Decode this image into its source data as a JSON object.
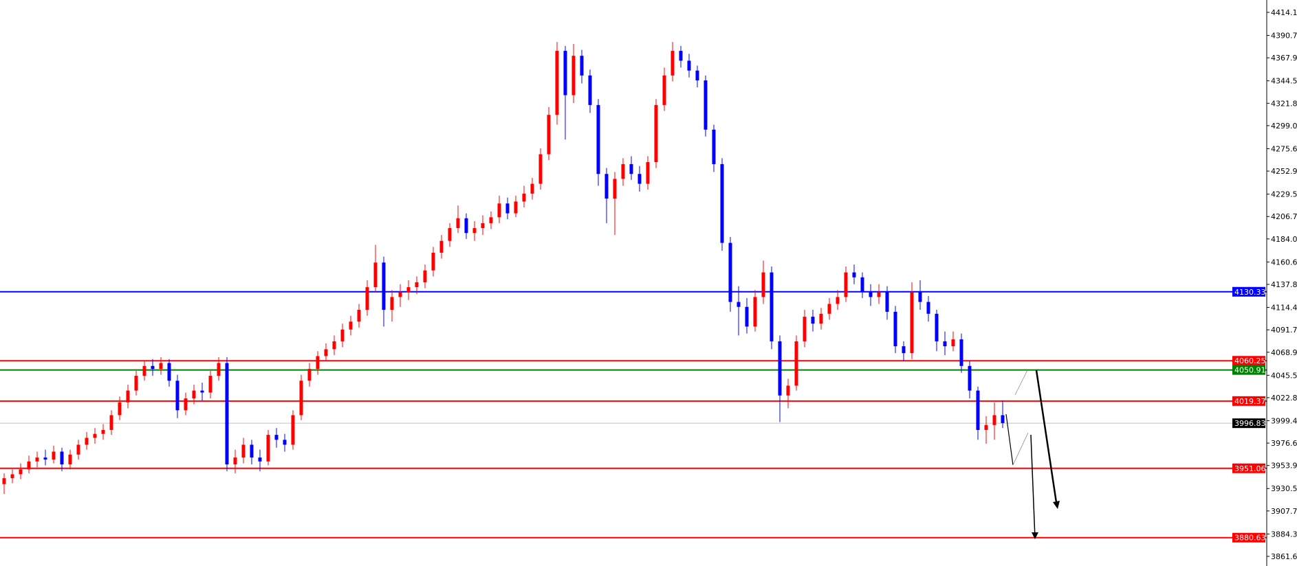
{
  "chart_data": {
    "type": "candlestick",
    "title": "",
    "xlabel": "",
    "ylabel": "",
    "ylim": [
      3855,
      4426
    ],
    "grid": false,
    "colors": {
      "bullish": "#ff0000",
      "bearish": "#0000ff",
      "axis": "#000000"
    },
    "y_ticks": [
      "4414.10",
      "4390.70",
      "4367.95",
      "4344.55",
      "4321.80",
      "4299.05",
      "4275.65",
      "4252.90",
      "4229.50",
      "4206.75",
      "4184.00",
      "4160.60",
      "4137.85",
      "4114.45",
      "4091.70",
      "4068.95",
      "4045.55",
      "4022.80",
      "3999.40",
      "3976.65",
      "3953.90",
      "3930.50",
      "3907.75",
      "3884.35",
      "3861.60"
    ],
    "levels": [
      {
        "value": "4130.33",
        "color": "#0000ff"
      },
      {
        "value": "4060.25",
        "color": "#ff0000"
      },
      {
        "value": "4050.91",
        "color": "#008000"
      },
      {
        "value": "4019.37",
        "color": "#ff0000"
      },
      {
        "value": "3951.06",
        "color": "#ff0000"
      },
      {
        "value": "3880.63",
        "color": "#ff0000"
      }
    ],
    "current_price": {
      "value": "3996.83",
      "color": "#000000",
      "line_color": "#c0c0c0"
    },
    "ohlc": [
      [
        3935,
        3946,
        3925,
        3941
      ],
      [
        3941,
        3950,
        3936,
        3945
      ],
      [
        3945,
        3956,
        3940,
        3950
      ],
      [
        3950,
        3964,
        3946,
        3958
      ],
      [
        3958,
        3968,
        3952,
        3962
      ],
      [
        3962,
        3970,
        3954,
        3960
      ],
      [
        3960,
        3974,
        3956,
        3968
      ],
      [
        3968,
        3972,
        3948,
        3955
      ],
      [
        3955,
        3970,
        3950,
        3965
      ],
      [
        3965,
        3980,
        3960,
        3975
      ],
      [
        3975,
        3988,
        3970,
        3982
      ],
      [
        3982,
        3992,
        3976,
        3986
      ],
      [
        3986,
        3996,
        3980,
        3990
      ],
      [
        3990,
        4010,
        3985,
        4005
      ],
      [
        4005,
        4024,
        4000,
        4018
      ],
      [
        4018,
        4036,
        4012,
        4030
      ],
      [
        4030,
        4050,
        4025,
        4045
      ],
      [
        4045,
        4060,
        4040,
        4055
      ],
      [
        4055,
        4062,
        4045,
        4052
      ],
      [
        4052,
        4064,
        4046,
        4058
      ],
      [
        4058,
        4062,
        4034,
        4040
      ],
      [
        4040,
        4046,
        4002,
        4010
      ],
      [
        4010,
        4028,
        4005,
        4022
      ],
      [
        4022,
        4036,
        4016,
        4030
      ],
      [
        4030,
        4038,
        4020,
        4028
      ],
      [
        4028,
        4050,
        4022,
        4045
      ],
      [
        4045,
        4064,
        4040,
        4058
      ],
      [
        4058,
        4064,
        3948,
        3955
      ],
      [
        3955,
        3970,
        3946,
        3962
      ],
      [
        3962,
        3982,
        3956,
        3975
      ],
      [
        3975,
        3980,
        3955,
        3962
      ],
      [
        3962,
        3970,
        3948,
        3958
      ],
      [
        3958,
        3990,
        3954,
        3985
      ],
      [
        3985,
        3992,
        3972,
        3980
      ],
      [
        3980,
        3986,
        3968,
        3975
      ],
      [
        3975,
        4010,
        3970,
        4005
      ],
      [
        4005,
        4046,
        4000,
        4040
      ],
      [
        4040,
        4058,
        4034,
        4052
      ],
      [
        4052,
        4070,
        4046,
        4065
      ],
      [
        4065,
        4078,
        4060,
        4072
      ],
      [
        4072,
        4086,
        4066,
        4080
      ],
      [
        4080,
        4098,
        4074,
        4092
      ],
      [
        4092,
        4106,
        4086,
        4100
      ],
      [
        4100,
        4118,
        4094,
        4112
      ],
      [
        4112,
        4142,
        4106,
        4135
      ],
      [
        4135,
        4178,
        4130,
        4160
      ],
      [
        4160,
        4166,
        4095,
        4112
      ],
      [
        4112,
        4132,
        4100,
        4125
      ],
      [
        4125,
        4138,
        4115,
        4130
      ],
      [
        4130,
        4142,
        4122,
        4135
      ],
      [
        4135,
        4146,
        4128,
        4140
      ],
      [
        4140,
        4158,
        4134,
        4152
      ],
      [
        4152,
        4176,
        4146,
        4170
      ],
      [
        4170,
        4188,
        4164,
        4182
      ],
      [
        4182,
        4200,
        4176,
        4195
      ],
      [
        4195,
        4218,
        4190,
        4205
      ],
      [
        4205,
        4210,
        4184,
        4190
      ],
      [
        4190,
        4202,
        4182,
        4195
      ],
      [
        4195,
        4208,
        4188,
        4200
      ],
      [
        4200,
        4212,
        4194,
        4206
      ],
      [
        4206,
        4228,
        4200,
        4220
      ],
      [
        4220,
        4226,
        4204,
        4210
      ],
      [
        4210,
        4228,
        4206,
        4222
      ],
      [
        4222,
        4238,
        4216,
        4230
      ],
      [
        4230,
        4246,
        4224,
        4240
      ],
      [
        4240,
        4276,
        4234,
        4270
      ],
      [
        4270,
        4318,
        4264,
        4310
      ],
      [
        4310,
        4384,
        4300,
        4375
      ],
      [
        4375,
        4380,
        4285,
        4330
      ],
      [
        4330,
        4382,
        4322,
        4370
      ],
      [
        4370,
        4376,
        4342,
        4350
      ],
      [
        4350,
        4356,
        4312,
        4320
      ],
      [
        4320,
        4326,
        4238,
        4250
      ],
      [
        4250,
        4256,
        4200,
        4225
      ],
      [
        4225,
        4252,
        4188,
        4245
      ],
      [
        4245,
        4266,
        4238,
        4260
      ],
      [
        4260,
        4268,
        4244,
        4250
      ],
      [
        4250,
        4258,
        4232,
        4240
      ],
      [
        4240,
        4268,
        4234,
        4262
      ],
      [
        4262,
        4326,
        4256,
        4320
      ],
      [
        4320,
        4358,
        4314,
        4350
      ],
      [
        4350,
        4384,
        4344,
        4375
      ],
      [
        4375,
        4380,
        4358,
        4365
      ],
      [
        4365,
        4372,
        4348,
        4355
      ],
      [
        4355,
        4360,
        4338,
        4345
      ],
      [
        4345,
        4350,
        4288,
        4295
      ],
      [
        4295,
        4300,
        4252,
        4260
      ],
      [
        4260,
        4266,
        4172,
        4180
      ],
      [
        4180,
        4186,
        4110,
        4120
      ],
      [
        4120,
        4136,
        4086,
        4115
      ],
      [
        4115,
        4124,
        4088,
        4095
      ],
      [
        4095,
        4132,
        4090,
        4125
      ],
      [
        4125,
        4162,
        4118,
        4150
      ],
      [
        4150,
        4156,
        4072,
        4080
      ],
      [
        4080,
        4086,
        3998,
        4025
      ],
      [
        4025,
        4042,
        4012,
        4035
      ],
      [
        4035,
        4086,
        4030,
        4080
      ],
      [
        4080,
        4112,
        4074,
        4105
      ],
      [
        4105,
        4112,
        4090,
        4098
      ],
      [
        4098,
        4114,
        4092,
        4108
      ],
      [
        4108,
        4124,
        4102,
        4118
      ],
      [
        4118,
        4132,
        4112,
        4125
      ],
      [
        4125,
        4156,
        4120,
        4150
      ],
      [
        4150,
        4158,
        4138,
        4145
      ],
      [
        4145,
        4150,
        4124,
        4130
      ],
      [
        4130,
        4138,
        4116,
        4125
      ],
      [
        4125,
        4138,
        4118,
        4130
      ],
      [
        4130,
        4136,
        4102,
        4110
      ],
      [
        4110,
        4116,
        4068,
        4075
      ],
      [
        4075,
        4080,
        4060,
        4068
      ],
      [
        4068,
        4140,
        4062,
        4130
      ],
      [
        4130,
        4142,
        4112,
        4120
      ],
      [
        4120,
        4126,
        4100,
        4108
      ],
      [
        4108,
        4112,
        4070,
        4080
      ],
      [
        4080,
        4090,
        4066,
        4075
      ],
      [
        4075,
        4090,
        4070,
        4082
      ],
      [
        4082,
        4088,
        4048,
        4055
      ],
      [
        4055,
        4060,
        4022,
        4030
      ],
      [
        4030,
        4034,
        3980,
        3990
      ],
      [
        3990,
        4004,
        3976,
        3995
      ],
      [
        3995,
        4018,
        3980,
        4005
      ],
      [
        4005,
        4020,
        3992,
        3997
      ]
    ]
  }
}
